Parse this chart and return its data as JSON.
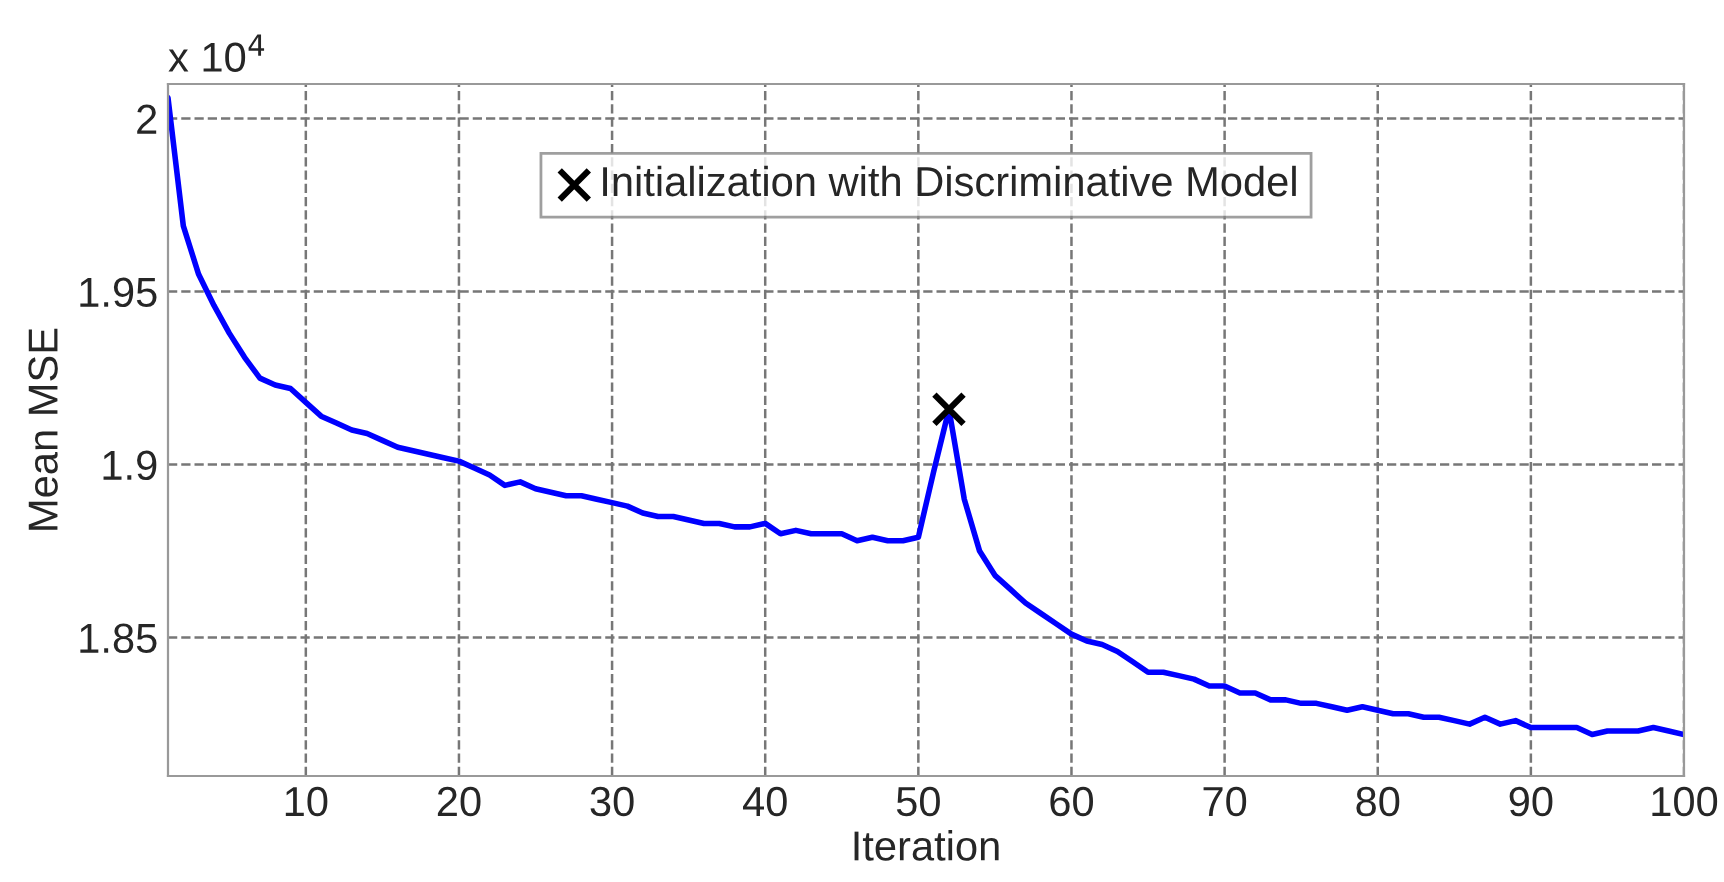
{
  "chart_data": {
    "type": "line",
    "xlabel": "Iteration",
    "ylabel": "Mean MSE",
    "annotations": [
      "x 10$^{4}$"
    ],
    "xlim": [
      1,
      100
    ],
    "xticks": [
      10,
      20,
      30,
      40,
      50,
      60,
      70,
      80,
      90,
      100
    ],
    "ylim": [
      1.81,
      2.01
    ],
    "yticks": [
      1.85,
      1.9,
      1.95,
      2
    ],
    "grid": true,
    "legend": "top",
    "series": [
      {
        "color": "#0000ff",
        "marker": "none",
        "x": [
          1,
          2,
          3,
          4,
          5,
          6,
          7,
          8,
          9,
          10,
          11,
          12,
          13,
          14,
          15,
          16,
          17,
          18,
          19,
          20,
          21,
          22,
          23,
          24,
          25,
          26,
          27,
          28,
          29,
          30,
          31,
          32,
          33,
          34,
          35,
          36,
          37,
          38,
          39,
          40,
          41,
          42,
          43,
          44,
          45,
          46,
          47,
          48,
          49,
          50,
          51,
          52,
          53,
          54,
          55,
          56,
          57,
          58,
          59,
          60,
          61,
          62,
          63,
          64,
          65,
          66,
          67,
          68,
          69,
          70,
          71,
          72,
          73,
          74,
          75,
          76,
          77,
          78,
          79,
          80,
          81,
          82,
          83,
          84,
          85,
          86,
          87,
          88,
          89,
          90,
          91,
          92,
          93,
          94,
          95,
          96,
          97,
          98,
          99,
          100
        ],
        "values": [
          2.006,
          1.969,
          1.955,
          1.946,
          1.938,
          1.931,
          1.925,
          1.923,
          1.922,
          1.918,
          1.914,
          1.912,
          1.91,
          1.909,
          1.907,
          1.905,
          1.904,
          1.903,
          1.902,
          1.901,
          1.899,
          1.897,
          1.894,
          1.895,
          1.893,
          1.892,
          1.891,
          1.891,
          1.89,
          1.889,
          1.888,
          1.886,
          1.885,
          1.885,
          1.884,
          1.883,
          1.883,
          1.882,
          1.882,
          1.883,
          1.88,
          1.881,
          1.88,
          1.88,
          1.88,
          1.878,
          1.879,
          1.878,
          1.878,
          1.879,
          1.898,
          1.916,
          1.89,
          1.875,
          1.868,
          1.864,
          1.86,
          1.857,
          1.854,
          1.851,
          1.849,
          1.848,
          1.846,
          1.843,
          1.84,
          1.84,
          1.839,
          1.838,
          1.836,
          1.836,
          1.834,
          1.834,
          1.832,
          1.832,
          1.831,
          1.831,
          1.83,
          1.829,
          1.83,
          1.829,
          1.828,
          1.828,
          1.827,
          1.827,
          1.826,
          1.825,
          1.827,
          1.825,
          1.826,
          1.824,
          1.824,
          1.824,
          1.824,
          1.822,
          1.823,
          1.823,
          1.823,
          1.824,
          1.823,
          1.822
        ]
      },
      {
        "type": "scatter",
        "name": "Initialization with Discriminative Model",
        "color": "#000000",
        "marker": "cross",
        "x": [
          52
        ],
        "values": [
          1.916
        ]
      }
    ]
  }
}
